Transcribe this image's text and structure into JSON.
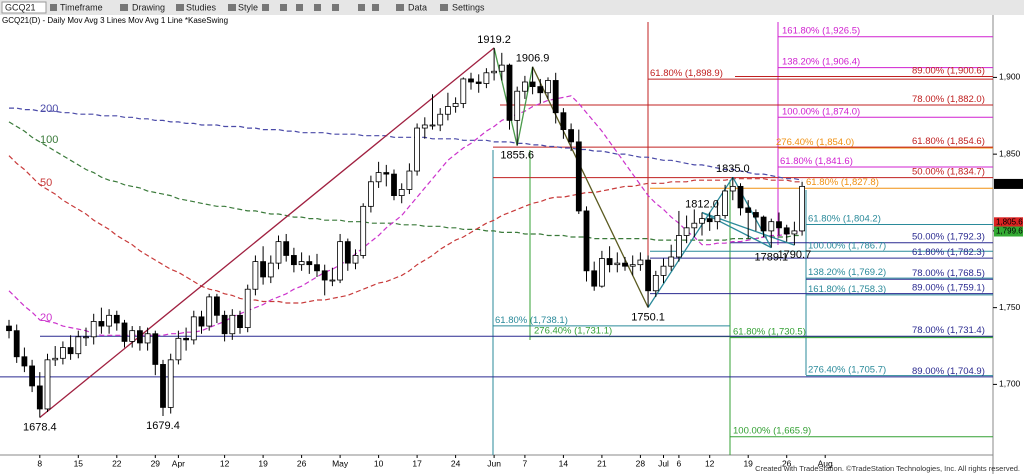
{
  "toolbar": {
    "symbol": "GCQ21",
    "items": [
      "Timeframe",
      "Drawing",
      "Studies",
      "Style",
      "Data",
      "Settings"
    ]
  },
  "footer": "Created with TradeStation. ©TradeStation Technologies, Inc. All rights reserved.",
  "chart_data": {
    "type": "candlestick",
    "title": "GCQ21(D) - Daily  Mov Avg 3 Lines  Mov Avg 1 Line  *KaseSwing",
    "up_color": "#ffffff",
    "down_color": "#000000",
    "categories": [
      null,
      null,
      null,
      null,
      "8",
      null,
      null,
      null,
      null,
      "15",
      null,
      null,
      null,
      null,
      "22",
      null,
      null,
      null,
      null,
      "29",
      null,
      null,
      "Apr",
      null,
      null,
      null,
      null,
      null,
      "12",
      null,
      null,
      null,
      null,
      "19",
      null,
      null,
      null,
      null,
      "26",
      null,
      null,
      null,
      null,
      "May",
      null,
      null,
      null,
      null,
      "10",
      null,
      null,
      null,
      null,
      "17",
      null,
      null,
      null,
      null,
      "24",
      null,
      null,
      null,
      null,
      "Jun",
      null,
      null,
      null,
      "7",
      null,
      null,
      null,
      null,
      "14",
      null,
      null,
      null,
      null,
      "21",
      null,
      null,
      null,
      null,
      "28",
      null,
      null,
      "Jul",
      null,
      "6",
      null,
      null,
      null,
      "12",
      null,
      null,
      null,
      null,
      "19",
      null,
      null,
      null,
      null,
      "26",
      null,
      null,
      null,
      null,
      "Aug"
    ],
    "open": [
      1738,
      1735,
      1718,
      1712,
      1699,
      1684,
      1716,
      1717,
      1724,
      1720,
      1731,
      1731,
      1741,
      1738,
      1745,
      1740,
      1728,
      1735,
      1727,
      1733,
      1713,
      1685,
      1716,
      1730,
      1729,
      1744,
      1738,
      1757,
      1745,
      1733,
      1745,
      1737,
      1762,
      1780,
      1770,
      1779,
      1793,
      1784,
      1778,
      1780,
      1778,
      1774,
      1768,
      1768,
      1793,
      1779,
      1784,
      1816,
      1832,
      1838,
      1837,
      1823,
      1827,
      1839,
      1867,
      1869,
      1869,
      1876,
      1881,
      1883,
      1899,
      1897,
      1896,
      1903,
      1904,
      1908,
      1872,
      1891,
      1897,
      1894,
      1890,
      1898,
      1877,
      1866,
      1858,
      1813,
      1774,
      1764,
      1782,
      1778,
      1779,
      1777,
      1778,
      1781,
      1761,
      1771,
      1777,
      1783,
      1797,
      1802,
      1805,
      1808,
      1806,
      1810,
      1826,
      1829,
      1815,
      1812,
      1809,
      1800,
      1806,
      1802,
      1798,
      1800,
      null,
      null,
      null
    ],
    "high": [
      1742,
      1739,
      1724,
      1716,
      1708,
      1720,
      1725,
      1728,
      1732,
      1735,
      1737,
      1746,
      1750,
      1749,
      1748,
      1742,
      1738,
      1738,
      1737,
      1735,
      1716,
      1720,
      1735,
      1737,
      1748,
      1748,
      1759,
      1759,
      1748,
      1749,
      1748,
      1765,
      1784,
      1790,
      1784,
      1797,
      1798,
      1789,
      1786,
      1784,
      1785,
      1778,
      1776,
      1798,
      1795,
      1788,
      1818,
      1836,
      1845,
      1843,
      1840,
      1831,
      1844,
      1870,
      1874,
      1889,
      1880,
      1890,
      1887,
      1900,
      1903,
      1902,
      1906,
      1919.2,
      1916,
      1909,
      1894,
      1901,
      1906.9,
      1899,
      1900,
      1903,
      1880,
      1870,
      1866,
      1816,
      1780,
      1787,
      1790,
      1786,
      1783,
      1784,
      1786,
      1784,
      1774,
      1782,
      1791,
      1813,
      1810,
      1814,
      1812,
      1812,
      1820,
      1830,
      1835.0,
      1831,
      1820,
      1814,
      1810,
      1808,
      1812.0,
      1804,
      1806,
      1832,
      null,
      null,
      null
    ],
    "low": [
      1730,
      1714,
      1708,
      1695,
      1678.4,
      1682,
      1712,
      1713,
      1716,
      1717,
      1725,
      1726,
      1733,
      1733,
      1735,
      1724,
      1724,
      1722,
      1722,
      1706,
      1679.4,
      1681,
      1713,
      1722,
      1726,
      1733,
      1735,
      1740,
      1728,
      1729,
      1733,
      1734,
      1758,
      1765,
      1766,
      1775,
      1780,
      1773,
      1774,
      1772,
      1770,
      1758,
      1764,
      1766,
      1774,
      1775,
      1782,
      1812,
      1828,
      1829,
      1820,
      1818,
      1824,
      1836,
      1860,
      1866,
      1865,
      1872,
      1877,
      1880,
      1892,
      1890,
      1893,
      1898,
      1898,
      1866,
      1855.6,
      1886,
      1889,
      1883,
      1886,
      1870,
      1860,
      1852,
      1811,
      1767,
      1761,
      1763,
      1773,
      1773,
      1774,
      1771,
      1774,
      1750.1,
      1757,
      1766,
      1774,
      1780,
      1792,
      1796,
      1797,
      1800,
      1801,
      1808,
      1820,
      1810,
      1795,
      1800,
      1796,
      1789.1,
      1797,
      1793,
      1790.7,
      1797,
      null,
      null,
      null
    ],
    "close": [
      1735,
      1718,
      1712,
      1699,
      1684,
      1716,
      1717,
      1724,
      1720,
      1731,
      1731,
      1741,
      1738,
      1745,
      1740,
      1728,
      1735,
      1727,
      1733,
      1713,
      1685,
      1716,
      1730,
      1729,
      1744,
      1738,
      1757,
      1745,
      1733,
      1745,
      1737,
      1762,
      1780,
      1770,
      1779,
      1793,
      1784,
      1778,
      1780,
      1778,
      1774,
      1768,
      1768,
      1793,
      1779,
      1784,
      1816,
      1832,
      1838,
      1837,
      1823,
      1827,
      1839,
      1867,
      1869,
      1869,
      1876,
      1881,
      1883,
      1899,
      1897,
      1896,
      1903,
      1904,
      1908,
      1872,
      1891,
      1897,
      1894,
      1890,
      1898,
      1877,
      1866,
      1858,
      1813,
      1774,
      1764,
      1782,
      1778,
      1779,
      1777,
      1778,
      1781,
      1761,
      1771,
      1777,
      1783,
      1797,
      1802,
      1805,
      1808,
      1806,
      1810,
      1826,
      1829,
      1815,
      1812,
      1809,
      1800,
      1806,
      1802,
      1798,
      1800,
      1829,
      null,
      null,
      null
    ],
    "series": [
      {
        "name": "200",
        "color": "#4a4aa8",
        "values": [
          1880,
          1880,
          1879,
          1879,
          1878,
          1878,
          1878,
          1877,
          1877,
          1876,
          1876,
          1876,
          1875,
          1875,
          1875,
          1874,
          1874,
          1873,
          1873,
          1872,
          1872,
          1871,
          1871,
          1870,
          1870,
          1869,
          1869,
          1869,
          1868,
          1868,
          1868,
          1867,
          1867,
          1866,
          1866,
          1866,
          1865,
          1865,
          1864,
          1864,
          1864,
          1864,
          1863,
          1863,
          1863,
          1863,
          1862,
          1862,
          1862,
          1862,
          1861,
          1861,
          1861,
          1861,
          1861,
          1860,
          1860,
          1860,
          1860,
          1859,
          1859,
          1859,
          1859,
          1858,
          1858,
          1858,
          1857,
          1857,
          1856,
          1856,
          1855,
          1855,
          1854,
          1854,
          1853,
          1853,
          1852,
          1852,
          1851,
          1850,
          1850,
          1849,
          1848,
          1848,
          1847,
          1846,
          1846,
          1845,
          1844,
          1843,
          1843,
          1842,
          1841,
          1840,
          1840,
          1839,
          1838,
          1837,
          1837,
          1836,
          1835,
          1834,
          1834,
          1833,
          null,
          null,
          null
        ]
      },
      {
        "name": "100",
        "color": "#3a7a3a",
        "values": [
          1871,
          1868,
          1865,
          1861,
          1858,
          1855,
          1852,
          1849,
          1846,
          1843,
          1840,
          1838,
          1835,
          1833,
          1832,
          1830,
          1829,
          1828,
          1826,
          1825,
          1824,
          1823,
          1821,
          1820,
          1819,
          1818,
          1817,
          1816,
          1816,
          1815,
          1814,
          1813,
          1813,
          1812,
          1811,
          1811,
          1810,
          1809,
          1809,
          1808,
          1808,
          1807,
          1807,
          1807,
          1806,
          1806,
          1806,
          1805,
          1805,
          1805,
          1805,
          1804,
          1804,
          1804,
          1803,
          1803,
          1803,
          1802,
          1802,
          1801,
          1801,
          1801,
          1800,
          1800,
          1799,
          1799,
          1799,
          1798,
          1798,
          1798,
          1797,
          1797,
          1797,
          1796,
          1796,
          1796,
          1795,
          1795,
          1795,
          1795,
          1795,
          1795,
          1795,
          1795,
          1794,
          1794,
          1794,
          1794,
          1794,
          1794,
          1794,
          1794,
          1794,
          1794,
          1795,
          1795,
          1795,
          1795,
          1796,
          1796,
          1796,
          1796,
          1797,
          1797,
          null,
          null,
          null
        ]
      },
      {
        "name": "50",
        "color": "#c83a3a",
        "values": [
          1849,
          1844,
          1840,
          1835,
          1830,
          1827,
          1824,
          1820,
          1817,
          1814,
          1811,
          1807,
          1804,
          1801,
          1797,
          1794,
          1791,
          1787,
          1784,
          1781,
          1778,
          1775,
          1773,
          1770,
          1767,
          1764,
          1762,
          1761,
          1759,
          1758,
          1756,
          1755,
          1755,
          1754,
          1754,
          1754,
          1753,
          1753,
          1753,
          1754,
          1755,
          1755,
          1756,
          1757,
          1758,
          1760,
          1762,
          1764,
          1766,
          1767,
          1769,
          1771,
          1774,
          1778,
          1781,
          1784,
          1788,
          1791,
          1794,
          1796,
          1799,
          1802,
          1805,
          1807,
          1810,
          1812,
          1814,
          1816,
          1818,
          1819,
          1821,
          1822,
          1822,
          1823,
          1824,
          1825,
          1825,
          1826,
          1827,
          1828,
          1829,
          1829,
          1830,
          1831,
          1831,
          1831,
          1832,
          1832,
          1832,
          1833,
          1833,
          1833,
          1833,
          1833,
          1834,
          1834,
          1834,
          1834,
          1834,
          1833,
          1833,
          1833,
          1832,
          1832,
          null,
          null,
          null
        ]
      },
      {
        "name": "20",
        "color": "#cc33cc",
        "values": [
          1761,
          1756,
          1751,
          1747,
          1742,
          1741,
          1740,
          1738,
          1737,
          1736,
          1735,
          1733,
          1732,
          1732,
          1732,
          1732,
          1732,
          1732,
          1732,
          1732,
          1732,
          1733,
          1733,
          1734,
          1734,
          1735,
          1737,
          1739,
          1741,
          1744,
          1746,
          1748,
          1750,
          1752,
          1755,
          1757,
          1759,
          1762,
          1764,
          1767,
          1770,
          1773,
          1775,
          1778,
          1781,
          1785,
          1789,
          1793,
          1797,
          1802,
          1806,
          1810,
          1816,
          1822,
          1828,
          1834,
          1840,
          1846,
          1850,
          1854,
          1857,
          1861,
          1865,
          1868,
          1872,
          1874,
          1876,
          1878,
          1881,
          1883,
          1885,
          1886,
          1887,
          1888,
          1883,
          1877,
          1871,
          1865,
          1858,
          1851,
          1844,
          1837,
          1830,
          1823,
          1818,
          1814,
          1809,
          1805,
          1800,
          1796,
          1791,
          1791,
          1792,
          1792,
          1793,
          1793,
          1794,
          1795,
          1796,
          1797,
          1797,
          1798,
          1799,
          1800,
          null,
          null,
          null
        ]
      }
    ],
    "ylim": [
      1654,
      1940
    ],
    "yticks": [
      {
        "value": 1700,
        "label": "1,700"
      },
      {
        "value": 1750,
        "label": "1,750"
      },
      {
        "value": 1800,
        "label": "1,800"
      },
      {
        "value": 1850,
        "label": "1,850"
      },
      {
        "value": 1900,
        "label": "1,900"
      }
    ],
    "price_markers": [
      {
        "value": 1830.6,
        "label": "1,830.6",
        "color": "#000000"
      },
      {
        "value": 1805.6,
        "label": "1,805.6",
        "color": "#dd2222"
      },
      {
        "value": 1799.6,
        "label": "1,799.6",
        "color": "#33aa33"
      }
    ],
    "swing_labels": [
      {
        "value": 1678.4,
        "label": "1678.4"
      },
      {
        "value": 1679.4,
        "label": "1679.4"
      },
      {
        "value": 1919.2,
        "label": "1919.2"
      },
      {
        "value": 1855.6,
        "label": "1855.6"
      },
      {
        "value": 1906.9,
        "label": "1906.9"
      },
      {
        "value": 1750.1,
        "label": "1750.1"
      },
      {
        "value": 1835.0,
        "label": "1835.0"
      },
      {
        "value": 1789.1,
        "label": "1789.1"
      },
      {
        "value": 1812.0,
        "label": "1812.0"
      },
      {
        "value": 1790.7,
        "label": "1790.7"
      }
    ],
    "fib_levels": [
      {
        "value": 1926.5,
        "label": "161.80% (1,926.5)",
        "color": "#d020d0"
      },
      {
        "value": 1906.4,
        "label": "138.20% (1,906.4)",
        "color": "#d020d0"
      },
      {
        "value": 1898.9,
        "label": "61.80% (1,898.9)",
        "color": "#c02020"
      },
      {
        "value": 1900.6,
        "label": "89.00% (1,900.6)",
        "color": "#c02020"
      },
      {
        "value": 1882.0,
        "label": "78.00% (1,882.0)",
        "color": "#c02020"
      },
      {
        "value": 1874.0,
        "label": "100.00% (1,874.0)",
        "color": "#d020d0"
      },
      {
        "value": 1854.0,
        "label": "276.40% (1,854.0)",
        "color": "#f09010"
      },
      {
        "value": 1854.6,
        "label": "61.80% (1,854.6)",
        "color": "#c02020"
      },
      {
        "value": 1841.6,
        "label": "61.80% (1,841.6)",
        "color": "#d020d0"
      },
      {
        "value": 1834.7,
        "label": "50.00% (1,834.7)",
        "color": "#c02020"
      },
      {
        "value": 1827.8,
        "label": "61.80% (1,827.8)",
        "color": "#f09010"
      },
      {
        "value": 1804.2,
        "label": "61.80% (1,804.2)",
        "color": "#2a8a9a"
      },
      {
        "value": 1792.3,
        "label": "50.00% (1,792.3)",
        "color": "#2a2a90"
      },
      {
        "value": 1786.7,
        "label": "100.00% (1,786.7)",
        "color": "#2a8a9a"
      },
      {
        "value": 1782.3,
        "label": "61.80% (1,782.3)",
        "color": "#2a2a90"
      },
      {
        "value": 1769.2,
        "label": "138.20% (1,769.2)",
        "color": "#2a8a9a"
      },
      {
        "value": 1768.5,
        "label": "78.00% (1,768.5)",
        "color": "#2a2a90"
      },
      {
        "value": 1758.3,
        "label": "161.80% (1,758.3)",
        "color": "#2a8a9a"
      },
      {
        "value": 1759.1,
        "label": "89.00% (1,759.1)",
        "color": "#2a2a90"
      },
      {
        "value": 1738.1,
        "label": "61.80% (1,738.1)",
        "color": "#2a8a9a"
      },
      {
        "value": 1731.1,
        "label": "276.40% (1,731.1)",
        "color": "#33a033"
      },
      {
        "value": 1730.5,
        "label": "61.80% (1,730.5)",
        "color": "#33a033"
      },
      {
        "value": 1731.4,
        "label": "78.00% (1,731.4)",
        "color": "#2a2a90"
      },
      {
        "value": 1705.7,
        "label": "276.40% (1,705.7)",
        "color": "#2a8a9a"
      },
      {
        "value": 1704.9,
        "label": "89.00% (1,704.9)",
        "color": "#2a2a90"
      },
      {
        "value": 1665.9,
        "label": "100.00% (1,665.9)",
        "color": "#33a033"
      }
    ]
  }
}
